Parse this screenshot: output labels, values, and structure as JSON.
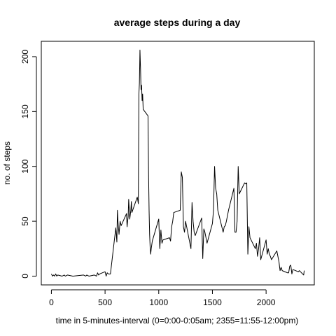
{
  "chart_data": {
    "type": "line",
    "title": "average steps during a day",
    "xlabel": "time in 5-minutes-interval (0=0:00-0:05am; 2355=11:55-12:00pm)",
    "ylabel": "no. of steps",
    "xlim": [
      -94,
      2449
    ],
    "ylim": [
      -8,
      214
    ],
    "x_ticks": [
      0,
      500,
      1000,
      1500,
      2000
    ],
    "x_tick_labels": [
      "0",
      "500",
      "1000",
      "1500",
      "2000"
    ],
    "y_ticks": [
      0,
      50,
      100,
      150,
      200
    ],
    "y_tick_labels": [
      "0",
      "50",
      "100",
      "150",
      "200"
    ],
    "grid": false,
    "line_color": "#000000",
    "series": [
      {
        "x": [
          0,
          10,
          20,
          30,
          40,
          50,
          60,
          100,
          120,
          130,
          150,
          200,
          300,
          320,
          330,
          350,
          400,
          420,
          430,
          440,
          450,
          500,
          510,
          520,
          530,
          550,
          600,
          610,
          615,
          620,
          630,
          640,
          650,
          700,
          705,
          710,
          715,
          720,
          730,
          740,
          745,
          750,
          800,
          810,
          815,
          820,
          825,
          830,
          835,
          840,
          845,
          850,
          855,
          900,
          905,
          910,
          915,
          920,
          925,
          930,
          940,
          1000,
          1010,
          1020,
          1030,
          1040,
          1100,
          1110,
          1120,
          1130,
          1140,
          1200,
          1210,
          1220,
          1230,
          1240,
          1250,
          1300,
          1310,
          1320,
          1330,
          1340,
          1400,
          1410,
          1420,
          1430,
          1440,
          1450,
          1500,
          1510,
          1520,
          1530,
          1540,
          1550,
          1600,
          1610,
          1620,
          1630,
          1640,
          1650,
          1700,
          1710,
          1720,
          1730,
          1740,
          1750,
          1800,
          1810,
          1820,
          1830,
          1840,
          1850,
          1900,
          1910,
          1920,
          1930,
          1940,
          1950,
          2000,
          2010,
          2020,
          2030,
          2040,
          2050,
          2100,
          2110,
          2120,
          2130,
          2140,
          2150,
          2200,
          2210,
          2220,
          2230,
          2240,
          2250,
          2300,
          2310,
          2320,
          2330,
          2340,
          2350,
          2355
        ],
        "values": [
          2,
          0,
          1,
          0,
          2,
          0,
          1,
          0,
          1,
          0,
          1,
          0,
          1,
          0,
          1,
          0,
          1,
          0,
          3,
          1,
          2,
          4,
          0,
          3,
          2,
          2,
          44,
          31,
          60,
          50,
          38,
          50,
          46,
          57,
          45,
          50,
          54,
          70,
          52,
          60,
          68,
          58,
          72,
          66,
          166,
          176,
          206,
          190,
          170,
          174,
          160,
          166,
          152,
          146,
          95,
          60,
          38,
          26,
          20,
          25,
          32,
          52,
          25,
          42,
          30,
          33,
          35,
          32,
          45,
          50,
          58,
          60,
          95,
          90,
          45,
          40,
          50,
          25,
          67,
          50,
          40,
          37,
          53,
          16,
          43,
          40,
          35,
          30,
          48,
          60,
          100,
          80,
          75,
          60,
          40,
          45,
          46,
          50,
          55,
          60,
          80,
          40,
          40,
          50,
          100,
          75,
          85,
          84,
          85,
          20,
          45,
          35,
          25,
          30,
          18,
          25,
          35,
          15,
          33,
          20,
          25,
          20,
          18,
          15,
          23,
          18,
          13,
          5,
          8,
          5,
          3,
          3,
          9,
          10,
          2,
          6,
          4,
          5,
          4,
          3,
          2,
          1,
          5
        ]
      }
    ]
  }
}
